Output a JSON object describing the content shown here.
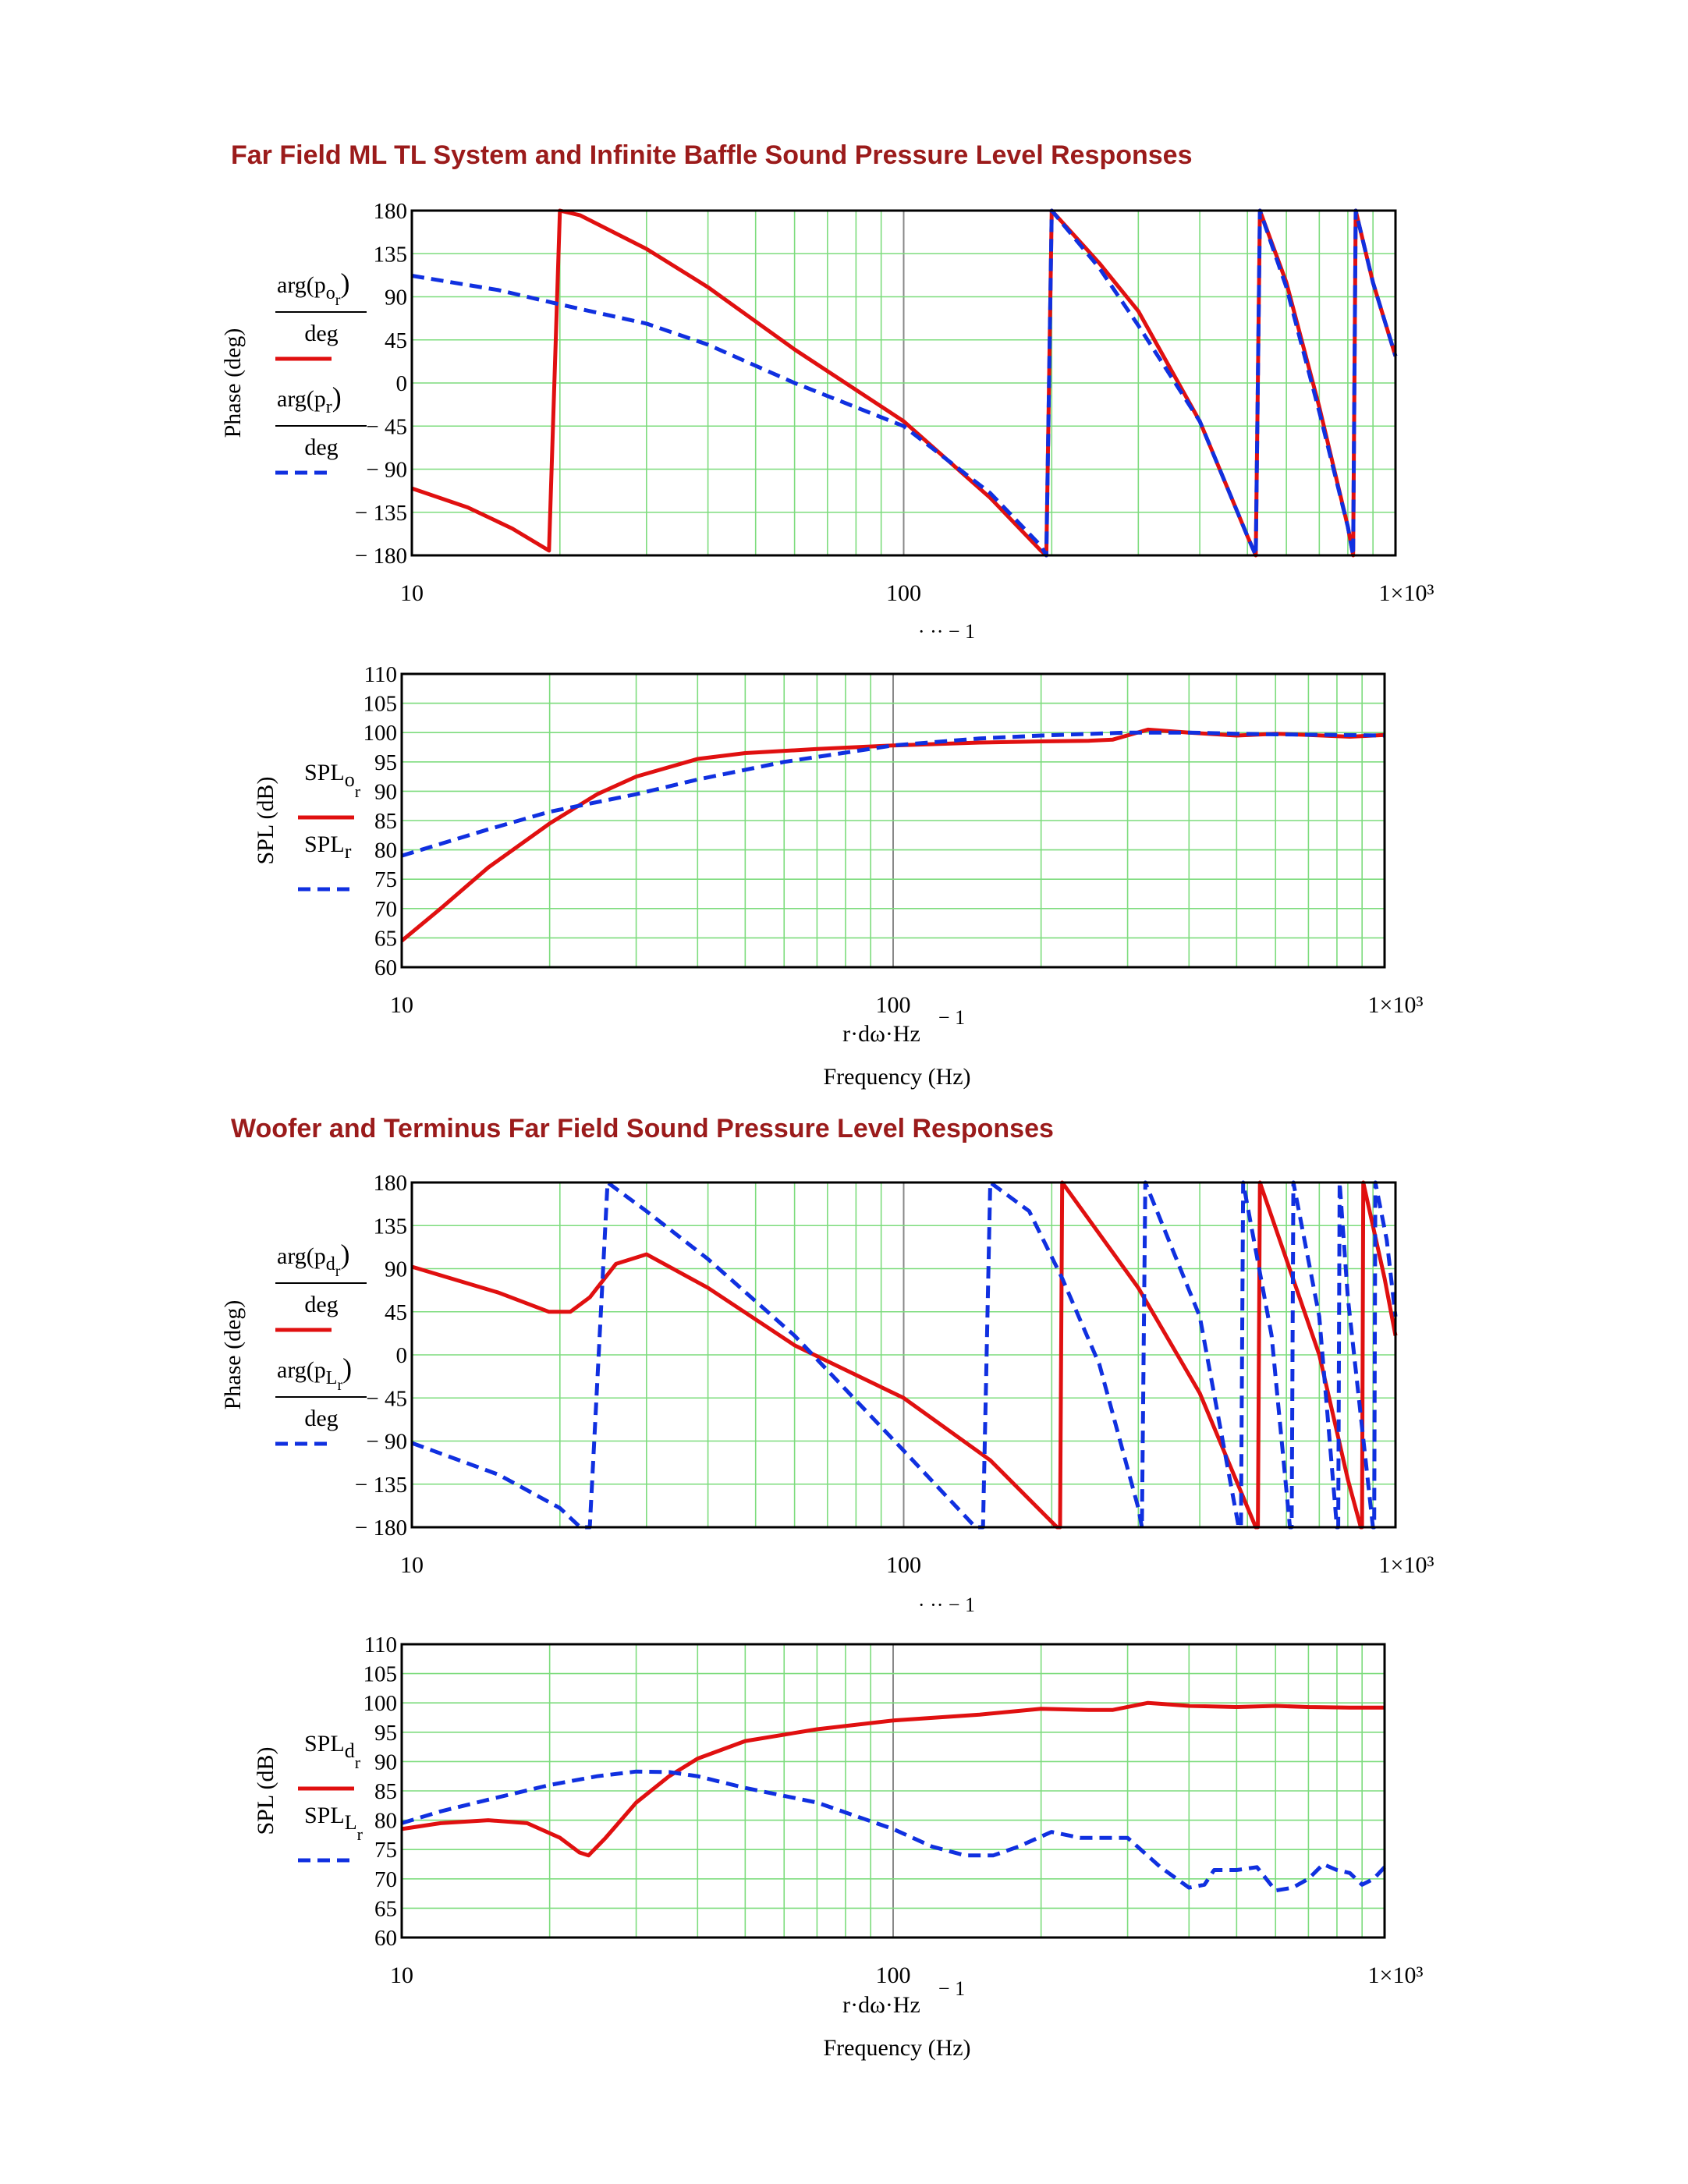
{
  "titles": [
    "Far Field ML TL System and Infinite Baffle Sound Pressure Level Responses",
    "Woofer and Terminus Far Field Sound Pressure Level Responses"
  ],
  "colors": {
    "solid": "#e01010",
    "dashed": "#1030e0",
    "grid": "#7ddc7d",
    "grid_major": "#888888",
    "title": "#9b1b1b"
  },
  "chart_data": [
    {
      "id": "phase1",
      "type": "line",
      "x_scale": "log",
      "xlim": [
        10,
        1000
      ],
      "ylim": [
        -180,
        180
      ],
      "yticks": [
        180,
        135,
        90,
        45,
        0,
        -45,
        -90,
        -135,
        -180
      ],
      "ytick_labels": [
        "180",
        "135",
        "90",
        "45",
        "0",
        "− 45",
        "− 90",
        "− 135",
        "− 180"
      ],
      "xtick_labels": [
        "10",
        "100",
        "1×10³"
      ],
      "ylabel": "Phase (deg)",
      "xlabel": "",
      "xlabel_cut": "·  ··  − 1",
      "legend": [
        {
          "base": "arg(p",
          "sub": "o",
          "subsub": "r",
          "close": ")",
          "den": "deg"
        },
        {
          "base": "arg(p",
          "sub": "r",
          "subsub": "",
          "close": ")",
          "den": "deg"
        }
      ],
      "series": [
        {
          "style": "solid",
          "x": [
            10,
            13,
            16,
            19,
            20,
            22,
            30,
            40,
            60,
            100,
            150,
            190,
            195,
            200,
            250,
            300,
            400,
            500,
            520,
            530,
            600,
            700,
            800,
            820,
            830,
            900,
            1000
          ],
          "y": [
            -110,
            -130,
            -152,
            -175,
            180,
            175,
            140,
            100,
            35,
            -40,
            -120,
            -175,
            -180,
            180,
            125,
            75,
            -40,
            -160,
            -180,
            180,
            105,
            -25,
            -150,
            -180,
            180,
            105,
            28
          ]
        },
        {
          "style": "dashed",
          "x": [
            10,
            15,
            20,
            30,
            40,
            60,
            100,
            150,
            190,
            195,
            200,
            250,
            300,
            400,
            500,
            520,
            530,
            600,
            700,
            800,
            820,
            830,
            900,
            1000
          ],
          "y": [
            112,
            97,
            82,
            62,
            40,
            0,
            -45,
            -115,
            -170,
            -180,
            180,
            120,
            60,
            -40,
            -160,
            -180,
            180,
            100,
            -30,
            -150,
            -180,
            180,
            105,
            28
          ]
        }
      ]
    },
    {
      "id": "spl1",
      "type": "line",
      "x_scale": "log",
      "xlim": [
        10,
        1000
      ],
      "ylim": [
        60,
        110
      ],
      "yticks": [
        110,
        105,
        100,
        95,
        90,
        85,
        80,
        75,
        70,
        65,
        60
      ],
      "ytick_labels": [
        "110",
        "105",
        "100",
        "95",
        "90",
        "85",
        "80",
        "75",
        "70",
        "65",
        "60"
      ],
      "xtick_labels": [
        "10",
        "100",
        "1×10³"
      ],
      "ylabel": "SPL (dB)",
      "xlabel": "r·dω·Hz",
      "xlabel_exp": "− 1",
      "xlabel_2": "Frequency (Hz)",
      "legend": [
        {
          "base": "SPL",
          "sub": "o",
          "subsub": "r"
        },
        {
          "base": "SPL",
          "sub": "r",
          "subsub": ""
        }
      ],
      "series": [
        {
          "style": "solid",
          "x": [
            10,
            12,
            15,
            20,
            25,
            30,
            40,
            50,
            70,
            100,
            150,
            200,
            250,
            280,
            330,
            400,
            500,
            600,
            700,
            850,
            1000
          ],
          "y": [
            64.5,
            70,
            77,
            84.5,
            89.5,
            92.5,
            95.5,
            96.5,
            97.2,
            97.8,
            98.3,
            98.5,
            98.6,
            98.8,
            100.5,
            100,
            99.5,
            99.8,
            99.6,
            99.3,
            99.6
          ]
        },
        {
          "style": "dashed",
          "x": [
            10,
            15,
            20,
            30,
            40,
            60,
            100,
            150,
            200,
            300,
            400,
            500,
            600,
            800,
            1000
          ],
          "y": [
            79,
            83.5,
            86.5,
            89.5,
            92,
            95,
            97.8,
            99,
            99.5,
            100,
            100,
            99.8,
            99.7,
            99.6,
            99.5
          ]
        }
      ]
    },
    {
      "id": "phase2",
      "type": "line",
      "x_scale": "log",
      "xlim": [
        10,
        1000
      ],
      "ylim": [
        -180,
        180
      ],
      "yticks": [
        180,
        135,
        90,
        45,
        0,
        -45,
        -90,
        -135,
        -180
      ],
      "ytick_labels": [
        "180",
        "135",
        "90",
        "45",
        "0",
        "− 45",
        "− 90",
        "− 135",
        "− 180"
      ],
      "xtick_labels": [
        "10",
        "100",
        "1×10³"
      ],
      "ylabel": "Phase (deg)",
      "xlabel": "",
      "xlabel_cut": "·  ··  − 1",
      "legend": [
        {
          "base": "arg(p",
          "sub": "d",
          "subsub": "r",
          "close": ")",
          "den": "deg"
        },
        {
          "base": "arg(p",
          "sub": "L",
          "subsub": "r",
          "close": ")",
          "den": "deg"
        }
      ],
      "series": [
        {
          "style": "solid",
          "x": [
            10,
            15,
            19,
            21,
            23,
            26,
            30,
            40,
            60,
            100,
            150,
            205,
            208,
            210,
            300,
            400,
            520,
            525,
            530,
            700,
            800,
            850,
            855,
            860,
            950,
            1000
          ],
          "y": [
            92,
            65,
            45,
            45,
            60,
            95,
            105,
            70,
            10,
            -45,
            -110,
            -180,
            -180,
            180,
            70,
            -40,
            -180,
            -180,
            180,
            0,
            -130,
            -180,
            -180,
            180,
            80,
            20
          ]
        },
        {
          "style": "dashed",
          "x": [
            10,
            15,
            20,
            22,
            23,
            25,
            30,
            40,
            60,
            100,
            140,
            145,
            150,
            180,
            210,
            250,
            300,
            305,
            310,
            400,
            480,
            485,
            490,
            560,
            610,
            615,
            620,
            700,
            760,
            765,
            770,
            800,
            900,
            905,
            910,
            960,
            1000
          ],
          "y": [
            -92,
            -125,
            -160,
            -180,
            -180,
            180,
            150,
            100,
            20,
            -100,
            -180,
            -180,
            180,
            150,
            80,
            -10,
            -160,
            -180,
            180,
            40,
            -180,
            -180,
            180,
            20,
            -180,
            -180,
            180,
            40,
            -180,
            -180,
            180,
            60,
            -180,
            -180,
            180,
            120,
            40
          ]
        }
      ]
    },
    {
      "id": "spl2",
      "type": "line",
      "x_scale": "log",
      "xlim": [
        10,
        1000
      ],
      "ylim": [
        60,
        110
      ],
      "yticks": [
        110,
        105,
        100,
        95,
        90,
        85,
        80,
        75,
        70,
        65,
        60
      ],
      "ytick_labels": [
        "110",
        "105",
        "100",
        "95",
        "90",
        "85",
        "80",
        "75",
        "70",
        "65",
        "60"
      ],
      "xtick_labels": [
        "10",
        "100",
        "1×10³"
      ],
      "ylabel": "SPL (dB)",
      "xlabel": "r·dω·Hz",
      "xlabel_exp": "− 1",
      "xlabel_2": "Frequency (Hz)",
      "legend": [
        {
          "base": "SPL",
          "sub": "d",
          "subsub": "r"
        },
        {
          "base": "SPL",
          "sub": "L",
          "subsub": "r"
        }
      ],
      "series": [
        {
          "style": "solid",
          "x": [
            10,
            12,
            15,
            18,
            21,
            23,
            24,
            26,
            30,
            35,
            40,
            50,
            70,
            100,
            150,
            200,
            250,
            280,
            330,
            400,
            500,
            600,
            700,
            850,
            1000
          ],
          "y": [
            78.5,
            79.5,
            80,
            79.5,
            77,
            74.5,
            74,
            77,
            83,
            87.5,
            90.5,
            93.5,
            95.5,
            97,
            98,
            99,
            98.8,
            98.8,
            100,
            99.5,
            99.3,
            99.5,
            99.3,
            99.2,
            99.2
          ]
        },
        {
          "style": "dashed",
          "x": [
            10,
            12,
            15,
            20,
            25,
            30,
            35,
            40,
            50,
            70,
            100,
            120,
            140,
            160,
            180,
            210,
            240,
            270,
            300,
            350,
            400,
            430,
            450,
            500,
            550,
            600,
            650,
            700,
            750,
            800,
            850,
            900,
            950,
            1000
          ],
          "y": [
            79.5,
            81.5,
            83.5,
            86,
            87.5,
            88.3,
            88.2,
            87.5,
            85.5,
            83,
            78.5,
            75.5,
            74,
            74,
            75.5,
            78,
            77,
            77,
            77,
            72,
            68.5,
            69,
            71.5,
            71.5,
            72,
            68,
            68.5,
            70,
            72.5,
            71.5,
            71,
            69,
            70,
            72
          ]
        }
      ]
    }
  ]
}
